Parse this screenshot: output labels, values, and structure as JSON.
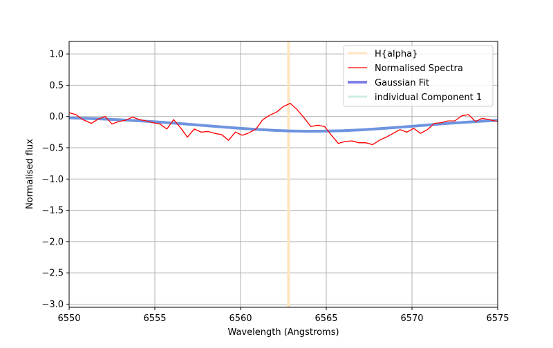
{
  "chart_data": {
    "type": "line",
    "title": "",
    "xlabel": "Wavelength (Angstroms)",
    "ylabel": "Normalised flux",
    "xlim": [
      6550,
      6575
    ],
    "ylim": [
      -3.05,
      1.2
    ],
    "grid": true,
    "legend_position": "top-right",
    "x_ticks": [
      6550,
      6555,
      6560,
      6565,
      6570,
      6575
    ],
    "y_ticks": [
      1.0,
      0.5,
      0.0,
      -0.5,
      -1.0,
      -1.5,
      -2.0,
      -2.5,
      -3.0
    ],
    "x_tick_labels": [
      "6550",
      "6555",
      "6560",
      "6565",
      "6570",
      "6575"
    ],
    "y_tick_labels": [
      "1.0",
      "0.5",
      "0.0",
      "−0.5",
      "−1.0",
      "−1.5",
      "−2.0",
      "−2.5",
      "−3.0"
    ],
    "vline": {
      "name": "H{alpha}",
      "x": 6562.8,
      "color": "#ffe4c0"
    },
    "series": [
      {
        "name": "Normalised Spectra",
        "color": "#ff0000",
        "x": [
          6550.0,
          6550.4,
          6550.8,
          6551.3,
          6551.7,
          6552.1,
          6552.5,
          6552.9,
          6553.3,
          6553.7,
          6554.1,
          6554.5,
          6554.9,
          6555.3,
          6555.7,
          6556.1,
          6556.5,
          6556.9,
          6557.3,
          6557.7,
          6558.1,
          6558.5,
          6558.9,
          6559.3,
          6559.7,
          6560.1,
          6560.5,
          6560.9,
          6561.3,
          6561.7,
          6562.1,
          6562.5,
          6562.9,
          6563.3,
          6563.7,
          6564.1,
          6564.5,
          6564.9,
          6565.3,
          6565.7,
          6566.1,
          6566.5,
          6566.9,
          6567.3,
          6567.7,
          6568.1,
          6568.5,
          6568.9,
          6569.3,
          6569.7,
          6570.1,
          6570.5,
          6570.9,
          6571.3,
          6571.7,
          6572.1,
          6572.5,
          6572.9,
          6573.3,
          6573.7,
          6574.1,
          6574.5,
          6575.0
        ],
        "y": [
          0.06,
          0.03,
          -0.05,
          -0.11,
          -0.04,
          0.0,
          -0.12,
          -0.08,
          -0.06,
          -0.01,
          -0.05,
          -0.07,
          -0.1,
          -0.12,
          -0.2,
          -0.05,
          -0.18,
          -0.33,
          -0.2,
          -0.25,
          -0.24,
          -0.27,
          -0.29,
          -0.38,
          -0.25,
          -0.3,
          -0.26,
          -0.2,
          -0.05,
          0.02,
          0.07,
          0.16,
          0.21,
          0.11,
          -0.02,
          -0.16,
          -0.14,
          -0.16,
          -0.3,
          -0.43,
          -0.4,
          -0.39,
          -0.42,
          -0.42,
          -0.45,
          -0.38,
          -0.33,
          -0.27,
          -0.21,
          -0.25,
          -0.19,
          -0.27,
          -0.21,
          -0.11,
          -0.1,
          -0.07,
          -0.07,
          0.01,
          0.03,
          -0.08,
          -0.03,
          -0.05,
          -0.08
        ]
      },
      {
        "name": "Gaussian Fit",
        "color": "#6e94e0",
        "x": [
          6550,
          6551,
          6552,
          6553,
          6554,
          6555,
          6556,
          6557,
          6558,
          6559,
          6560,
          6561,
          6562,
          6563,
          6564,
          6565,
          6566,
          6567,
          6568,
          6569,
          6570,
          6571,
          6572,
          6573,
          6574,
          6575
        ],
        "y": [
          -0.023,
          -0.031,
          -0.041,
          -0.053,
          -0.068,
          -0.085,
          -0.104,
          -0.125,
          -0.147,
          -0.169,
          -0.189,
          -0.207,
          -0.222,
          -0.232,
          -0.236,
          -0.234,
          -0.227,
          -0.214,
          -0.197,
          -0.177,
          -0.156,
          -0.134,
          -0.113,
          -0.094,
          -0.076,
          -0.061
        ]
      }
    ],
    "legend": [
      {
        "label": "H{alpha}",
        "color": "#ffe4c0",
        "width": 3
      },
      {
        "label": "Normalised Spectra",
        "color": "#ff0000",
        "width": 1.2
      },
      {
        "label": "Gaussian Fit",
        "color": "#8080e8",
        "width": 4
      },
      {
        "label": "individual Component 1",
        "color": "#cdeee2",
        "width": 3
      }
    ]
  }
}
